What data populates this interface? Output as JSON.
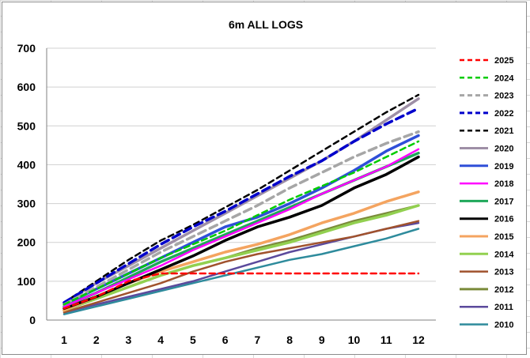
{
  "chart_data": {
    "type": "line",
    "title": "6m ALL LOGS",
    "xlabel": "",
    "ylabel": "",
    "x": [
      1,
      2,
      3,
      4,
      5,
      6,
      7,
      8,
      9,
      10,
      11,
      12
    ],
    "ylim": [
      0,
      700
    ],
    "yticks": [
      0,
      100,
      200,
      300,
      400,
      500,
      600,
      700
    ],
    "grid": "horizontal",
    "legend_position": "right",
    "series": [
      {
        "name": "2025",
        "color": "#ff0000",
        "dashed": true,
        "width": 2.5,
        "values": [
          30,
          60,
          100,
          120,
          120,
          120,
          120,
          120,
          120,
          120,
          120,
          120
        ]
      },
      {
        "name": "2024",
        "color": "#00cc00",
        "dashed": true,
        "width": 2.5,
        "values": [
          40,
          80,
          120,
          160,
          195,
          230,
          270,
          310,
          345,
          380,
          420,
          460
        ]
      },
      {
        "name": "2023",
        "color": "#a6a6a6",
        "dashed": true,
        "width": 3.5,
        "values": [
          40,
          85,
          130,
          175,
          215,
          255,
          295,
          340,
          380,
          420,
          455,
          485
        ]
      },
      {
        "name": "2022",
        "color": "#0000cc",
        "dashed": true,
        "width": 3.5,
        "values": [
          45,
          95,
          145,
          195,
          240,
          280,
          325,
          370,
          410,
          460,
          505,
          545
        ]
      },
      {
        "name": "2021",
        "color": "#000000",
        "dashed": true,
        "width": 2.5,
        "values": [
          45,
          100,
          155,
          205,
          245,
          290,
          335,
          385,
          435,
          485,
          535,
          580
        ]
      },
      {
        "name": "2020",
        "color": "#9e8fa6",
        "dashed": false,
        "width": 3.5,
        "values": [
          45,
          95,
          140,
          185,
          230,
          275,
          320,
          365,
          410,
          460,
          515,
          570
        ]
      },
      {
        "name": "2019",
        "color": "#2f4fd8",
        "dashed": false,
        "width": 3.5,
        "values": [
          40,
          80,
          120,
          160,
          200,
          240,
          265,
          300,
          340,
          385,
          435,
          475
        ]
      },
      {
        "name": "2018",
        "color": "#ff00ff",
        "dashed": false,
        "width": 2.5,
        "values": [
          35,
          70,
          105,
          140,
          180,
          215,
          250,
          285,
          325,
          360,
          395,
          440
        ]
      },
      {
        "name": "2017",
        "color": "#1fa85a",
        "dashed": false,
        "width": 3.5,
        "values": [
          35,
          70,
          110,
          150,
          185,
          220,
          255,
          290,
          325,
          360,
          395,
          430
        ]
      },
      {
        "name": "2016",
        "color": "#000000",
        "dashed": false,
        "width": 3.5,
        "values": [
          30,
          60,
          95,
          130,
          165,
          205,
          240,
          265,
          295,
          340,
          375,
          420
        ]
      },
      {
        "name": "2015",
        "color": "#f4a460",
        "dashed": false,
        "width": 3.5,
        "values": [
          25,
          60,
          95,
          125,
          150,
          175,
          195,
          220,
          250,
          275,
          305,
          330
        ]
      },
      {
        "name": "2014",
        "color": "#92d050",
        "dashed": false,
        "width": 3.5,
        "values": [
          25,
          55,
          85,
          115,
          140,
          160,
          180,
          200,
          225,
          250,
          270,
          295
        ]
      },
      {
        "name": "2013",
        "color": "#a0522d",
        "dashed": false,
        "width": 2.5,
        "values": [
          20,
          45,
          70,
          95,
          125,
          150,
          170,
          185,
          200,
          215,
          235,
          255
        ]
      },
      {
        "name": "2012",
        "color": "#7a8a3a",
        "dashed": false,
        "width": 3.0,
        "values": [
          25,
          55,
          85,
          115,
          140,
          160,
          185,
          205,
          230,
          255,
          275,
          295
        ]
      },
      {
        "name": "2011",
        "color": "#5b4a9c",
        "dashed": false,
        "width": 2.5,
        "values": [
          20,
          40,
          60,
          80,
          100,
          125,
          150,
          175,
          195,
          215,
          235,
          250
        ]
      },
      {
        "name": "2010",
        "color": "#2e8b9c",
        "dashed": false,
        "width": 2.5,
        "values": [
          15,
          35,
          55,
          75,
          95,
          115,
          135,
          155,
          170,
          190,
          210,
          235
        ]
      }
    ]
  }
}
